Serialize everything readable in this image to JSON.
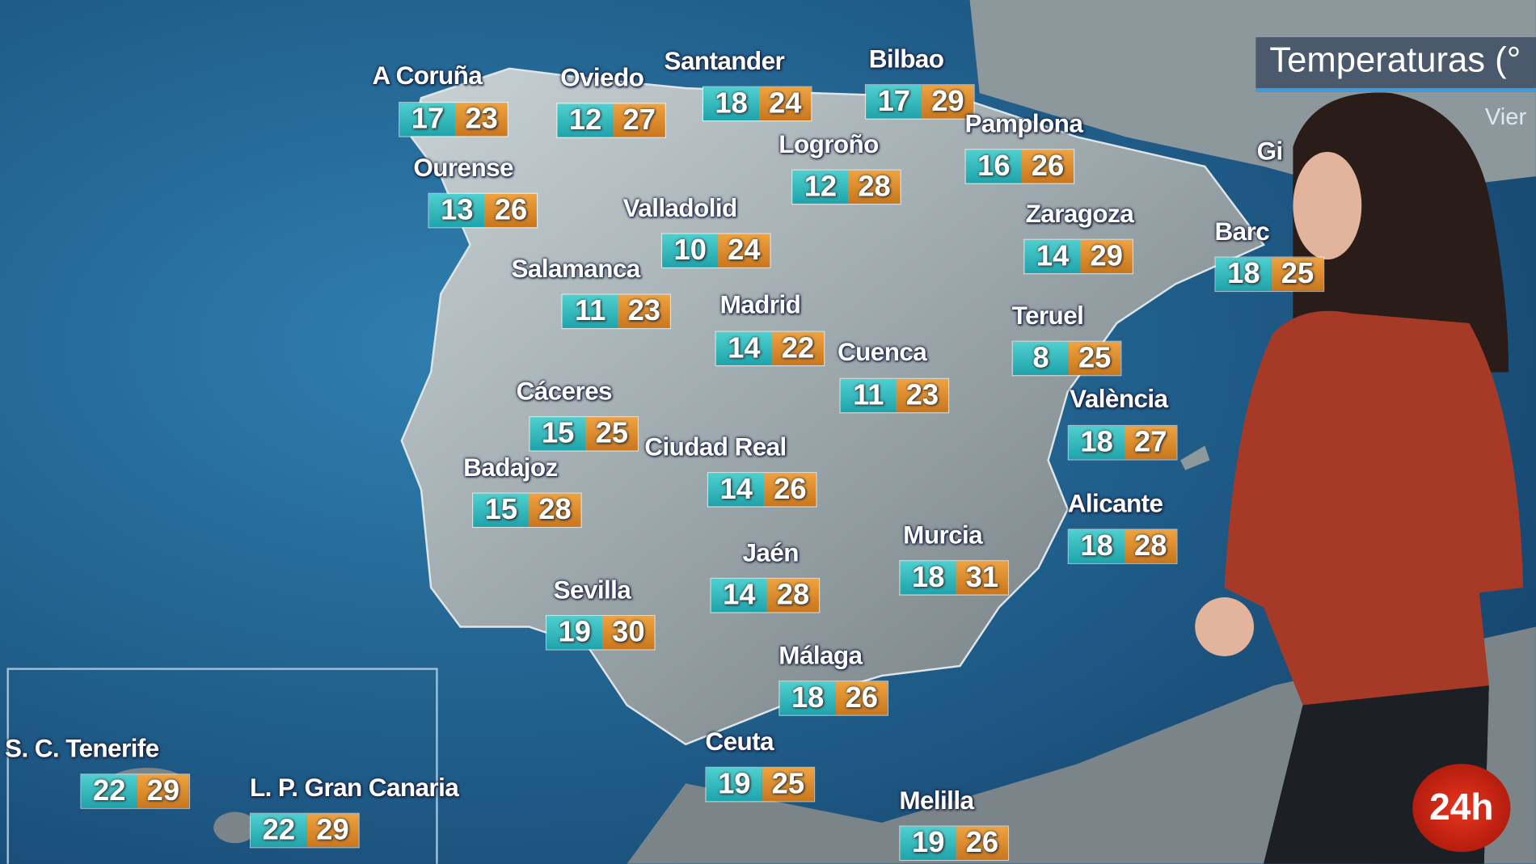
{
  "header": {
    "title": "Temperaturas (°",
    "subtitle": "Vier"
  },
  "cities": [
    {
      "name": "A Coruña",
      "min": 17,
      "max": 23
    },
    {
      "name": "Oviedo",
      "min": 12,
      "max": 27
    },
    {
      "name": "Santander",
      "min": 18,
      "max": 24
    },
    {
      "name": "Bilbao",
      "min": 17,
      "max": 29
    },
    {
      "name": "Pamplona",
      "min": 16,
      "max": 26
    },
    {
      "name": "Logroño",
      "min": 12,
      "max": 28
    },
    {
      "name": "Ourense",
      "min": 13,
      "max": 26
    },
    {
      "name": "Valladolid",
      "min": 10,
      "max": 24
    },
    {
      "name": "Zaragoza",
      "min": 14,
      "max": 29
    },
    {
      "name": "Barc",
      "min": 18,
      "max": 25
    },
    {
      "name": "Salamanca",
      "min": 11,
      "max": 23
    },
    {
      "name": "Madrid",
      "min": 14,
      "max": 22
    },
    {
      "name": "Teruel",
      "min": 8,
      "max": 25
    },
    {
      "name": "Cuenca",
      "min": 11,
      "max": 23
    },
    {
      "name": "Cáceres",
      "min": 15,
      "max": 25
    },
    {
      "name": "València",
      "min": 18,
      "max": 27
    },
    {
      "name": "Ciudad Real",
      "min": 14,
      "max": 26
    },
    {
      "name": "Badajoz",
      "min": 15,
      "max": 28
    },
    {
      "name": "Alicante",
      "min": 18,
      "max": 28
    },
    {
      "name": "Murcia",
      "min": 18,
      "max": 31
    },
    {
      "name": "Jaén",
      "min": 14,
      "max": 28
    },
    {
      "name": "Sevilla",
      "min": 19,
      "max": 30
    },
    {
      "name": "Málaga",
      "min": 18,
      "max": 26
    },
    {
      "name": "Ceuta",
      "min": 19,
      "max": 25
    },
    {
      "name": "Melilla",
      "min": 19,
      "max": 26
    },
    {
      "name": "S. C. Tenerife",
      "min": 22,
      "max": 29
    },
    {
      "name": "L. P. Gran Canaria",
      "min": 22,
      "max": 29
    }
  ],
  "partial_labels": [
    "Gi"
  ],
  "logo": "24h"
}
